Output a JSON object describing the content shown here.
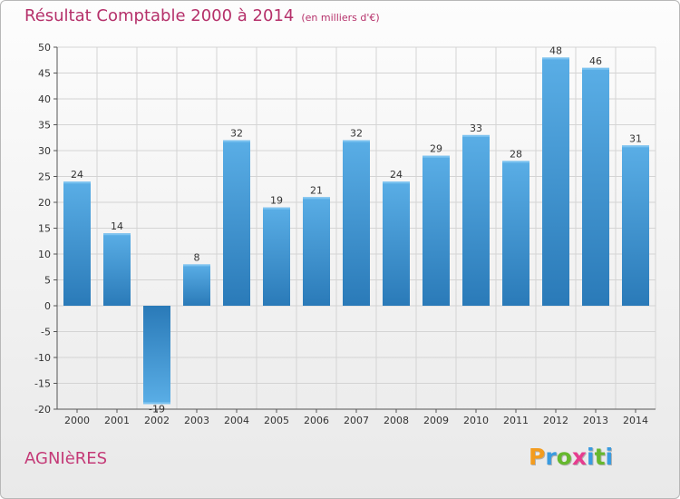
{
  "chart_data": {
    "type": "bar",
    "title": "Résultat Comptable 2000 à 2014",
    "unit_note": "(en milliers d'€)",
    "categories": [
      "2000",
      "2001",
      "2002",
      "2003",
      "2004",
      "2005",
      "2006",
      "2007",
      "2008",
      "2009",
      "2010",
      "2011",
      "2012",
      "2013",
      "2014"
    ],
    "values": [
      24,
      14,
      -19,
      8,
      32,
      19,
      21,
      32,
      24,
      29,
      33,
      28,
      48,
      46,
      31
    ],
    "data_labels": [
      "24",
      "14",
      "-19",
      "8",
      "32",
      "19",
      "21",
      "32",
      "24",
      "29",
      "33",
      "28",
      "48",
      "46",
      "31"
    ],
    "ylim": [
      -20,
      50
    ],
    "yticks": [
      -20,
      -15,
      -10,
      -5,
      0,
      5,
      10,
      15,
      20,
      25,
      30,
      35,
      40,
      45,
      50
    ],
    "grid": true,
    "xlabel": "",
    "ylabel": "",
    "bar_color_light": "#5aaee6",
    "bar_color_dark": "#2a7ab8",
    "grid_color": "#d4d4d4"
  },
  "footer": {
    "commune": "AGNIèRES",
    "logo_text": "Proxiti",
    "logo_colors": [
      "#f39c1f",
      "#3a9be0",
      "#66b82e",
      "#e63d8f",
      "#3a9be0",
      "#66b82e",
      "#3a9be0"
    ]
  },
  "colors": {
    "title": "#b5306a",
    "commune": "#c43a77"
  }
}
